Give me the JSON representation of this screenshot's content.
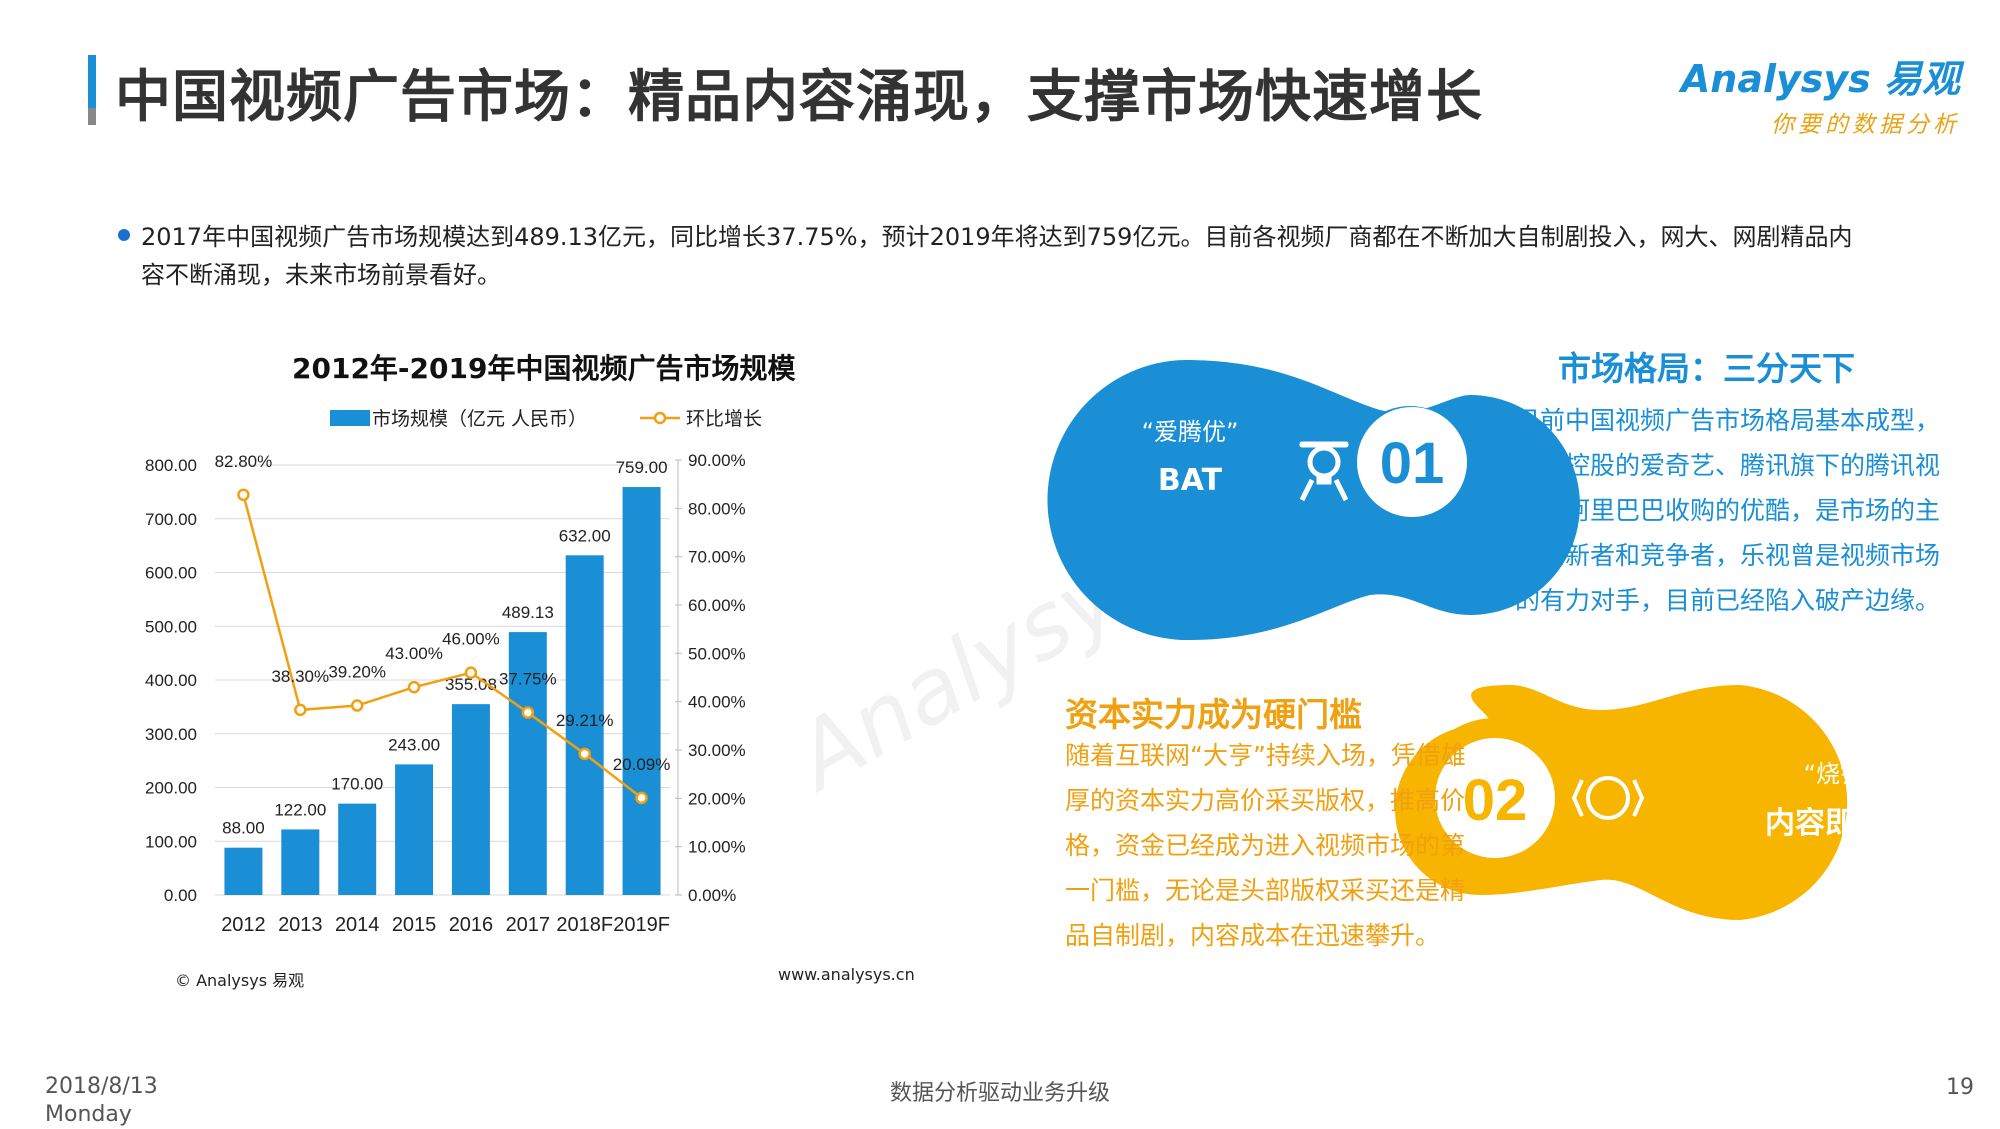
{
  "header": {
    "title": "中国视频广告市场：精品内容涌现，支撑市场快速增长",
    "logo_main": "Analysys 易观",
    "logo_sub": "你要的数据分析"
  },
  "summary": {
    "text": "2017年中国视频广告市场规模达到489.13亿元，同比增长37.75%，预计2019年将达到759亿元。目前各视频厂商都在不断加大自制剧投入，网大、网剧精品内容不断涌现，未来市场前景看好。"
  },
  "chart_data": {
    "type": "bar",
    "title": "2012年-2019年中国视频广告市场规模",
    "categories": [
      "2012",
      "2013",
      "2014",
      "2015",
      "2016",
      "2017",
      "2018F",
      "2019F"
    ],
    "series": [
      {
        "name": "市场规模（亿元 人民币）",
        "type": "bar",
        "axis": "left",
        "values": [
          88.0,
          122.0,
          170.0,
          243.0,
          355.08,
          489.13,
          632.0,
          759.0
        ],
        "labels": [
          "88.00",
          "122.00",
          "170.00",
          "243.00",
          "355.08",
          "489.13",
          "632.00",
          "759.00"
        ],
        "color": "#1a8fd6"
      },
      {
        "name": "环比增长",
        "type": "line",
        "axis": "right",
        "values": [
          82.8,
          38.3,
          39.2,
          43.0,
          46.0,
          37.75,
          29.21,
          20.09
        ],
        "labels": [
          "82.80%",
          "38.30%",
          "39.20%",
          "43.00%",
          "46.00%",
          "37.75%",
          "29.21%",
          "20.09%"
        ],
        "color": "#f0a010"
      }
    ],
    "ylim_left": [
      0,
      800
    ],
    "yticks_left": [
      "0.00",
      "100.00",
      "200.00",
      "300.00",
      "400.00",
      "500.00",
      "600.00",
      "700.00",
      "800.00"
    ],
    "ylim_right": [
      0,
      90
    ],
    "yticks_right": [
      "0.00%",
      "10.00%",
      "20.00%",
      "30.00%",
      "40.00%",
      "50.00%",
      "60.00%",
      "70.00%",
      "80.00%",
      "90.00%"
    ],
    "legend_position": "top",
    "grid": true,
    "source_left": "© Analysys 易观",
    "source_right": "www.analysys.cn"
  },
  "panels": {
    "bat_quote": "“爱腾优”",
    "bat_label": "BAT",
    "num1": "01",
    "num2": "02",
    "burn_quote": "“烧钱”",
    "burn_label": "内容即实力",
    "market_title": "市场格局：三分天下",
    "market_text": "目前中国视频广告市场格局基本成型，百度控股的爱奇艺、腾讯旗下的腾讯视频、阿里巴巴收购的优酷，是市场的主要创新者和竞争者，乐视曾是视频市场的有力对手，目前已经陷入破产边缘。",
    "capital_title": "资本实力成为硬门槛",
    "capital_text": "随着互联网“大亨”持续入场，凭借雄厚的资本实力高价采买版权，推高价格，资金已经成为进入视频市场的第一门槛，无论是头部版权采买还是精品自制剧，内容成本在迅速攀升。",
    "blue": "#1a8fd6",
    "orange": "#f7b500"
  },
  "footer": {
    "date": "2018/8/13",
    "weekday": "Monday",
    "center": "数据分析驱动业务升级",
    "page": "19"
  }
}
